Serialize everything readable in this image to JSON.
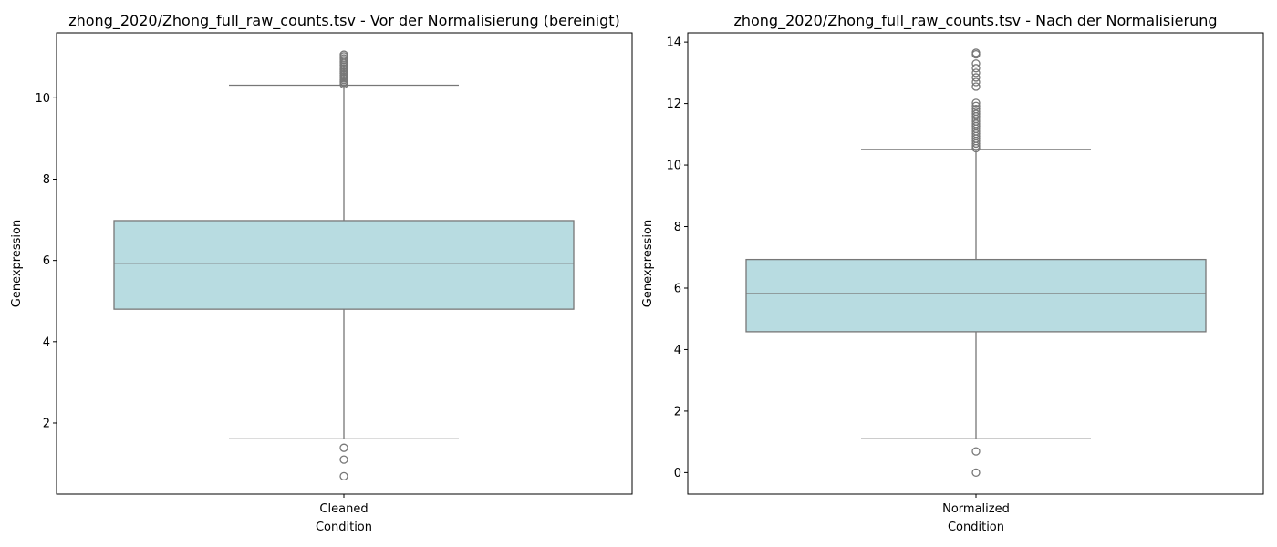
{
  "chart_data": [
    {
      "type": "box",
      "title": "zhong_2020/Zhong_full_raw_counts.tsv - Vor der Normalisierung (bereinigt)",
      "xlabel": "Condition",
      "ylabel": "Genexpression",
      "categories": [
        "Cleaned"
      ],
      "ylim": [
        0.25,
        11.6
      ],
      "yticks": [
        2,
        4,
        6,
        8,
        10
      ],
      "box": {
        "whisker_low": 1.61,
        "q1": 4.8,
        "median": 5.93,
        "q3": 6.98,
        "whisker_high": 10.31
      },
      "outliers_high": [
        10.33,
        10.37,
        10.4,
        10.44,
        10.48,
        10.52,
        10.56,
        10.6,
        10.64,
        10.68,
        10.72,
        10.76,
        10.8,
        10.84,
        10.88,
        10.93,
        10.97,
        11.02,
        11.06
      ],
      "outliers_low": [
        1.39,
        1.1,
        0.69
      ],
      "box_color": "#b8dce1",
      "line_color": "#777777",
      "grid": false
    },
    {
      "type": "box",
      "title": "zhong_2020/Zhong_full_raw_counts.tsv - Nach der Normalisierung",
      "xlabel": "Condition",
      "ylabel": "Genexpression",
      "categories": [
        "Normalized"
      ],
      "ylim": [
        -0.7,
        14.3
      ],
      "yticks": [
        0,
        2,
        4,
        6,
        8,
        10,
        12,
        14
      ],
      "box": {
        "whisker_low": 1.1,
        "q1": 4.58,
        "median": 5.82,
        "q3": 6.93,
        "whisker_high": 10.51
      },
      "outliers_high": [
        10.55,
        10.62,
        10.7,
        10.78,
        10.86,
        10.94,
        11.02,
        11.1,
        11.18,
        11.26,
        11.34,
        11.42,
        11.5,
        11.58,
        11.66,
        11.74,
        11.82,
        11.92,
        12.02,
        12.55,
        12.7,
        12.85,
        13.0,
        13.15,
        13.3,
        13.6,
        13.65
      ],
      "outliers_low": [
        0.69,
        0.0
      ],
      "box_color": "#b8dce1",
      "line_color": "#777777",
      "grid": false
    }
  ]
}
